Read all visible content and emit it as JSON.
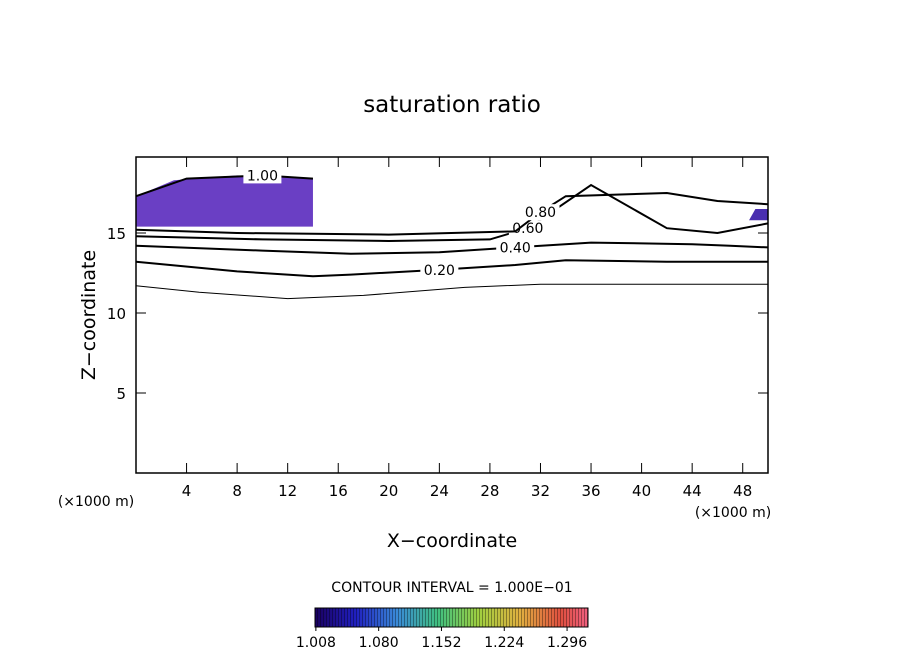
{
  "chart_data": {
    "type": "contour",
    "title": "saturation ratio",
    "xlabel": "X−coordinate",
    "ylabel": "Z−coordinate",
    "x_unit_left": "(×1000 m)",
    "x_unit_right": "(×1000 m)",
    "footer": "CONTOUR INTERVAL = 1.000E−01",
    "xlim": [
      0,
      50
    ],
    "ylim": [
      0,
      19.75
    ],
    "xticks": [
      4,
      8,
      12,
      16,
      20,
      24,
      28,
      32,
      36,
      40,
      44,
      48
    ],
    "yticks": [
      5,
      10,
      15
    ],
    "line_color": "#000000",
    "contours": [
      {
        "level": 0.1,
        "x": [
          0,
          5,
          12,
          18,
          26,
          32,
          50
        ],
        "z": [
          11.7,
          11.3,
          10.9,
          11.1,
          11.6,
          11.8,
          11.8
        ]
      },
      {
        "level": 0.2,
        "label": "0.20",
        "x": [
          0,
          8,
          14,
          17,
          24,
          30,
          34,
          42,
          50
        ],
        "z": [
          13.2,
          12.6,
          12.3,
          12.4,
          12.7,
          13.0,
          13.3,
          13.2,
          13.2
        ]
      },
      {
        "level": 0.4,
        "label": "0.40",
        "x": [
          0,
          10,
          17,
          24,
          30,
          36,
          44,
          47,
          50
        ],
        "z": [
          14.2,
          13.9,
          13.7,
          13.8,
          14.1,
          14.4,
          14.3,
          14.2,
          14.1
        ]
      },
      {
        "level": 0.6,
        "label": "0.60",
        "x": [
          0,
          10,
          20,
          28,
          31,
          36,
          42,
          46,
          50
        ],
        "z": [
          14.8,
          14.6,
          14.5,
          14.6,
          15.3,
          18.0,
          15.3,
          15.0,
          15.6
        ]
      },
      {
        "level": 0.8,
        "label": "0.80",
        "x": [
          0,
          8,
          20,
          30,
          32,
          34,
          42,
          46,
          50
        ],
        "z": [
          15.2,
          15.0,
          14.9,
          15.1,
          16.3,
          17.3,
          17.5,
          17.0,
          16.8
        ]
      },
      {
        "level": 1.0,
        "label": "1.00",
        "x": [
          0,
          4,
          10,
          14
        ],
        "z": [
          17.3,
          18.4,
          18.6,
          18.4
        ]
      }
    ],
    "filled_regions": [
      {
        "color": "#6a3fc4",
        "x": [
          0,
          0,
          3,
          8,
          14,
          14
        ],
        "z": [
          15.4,
          17.3,
          18.3,
          18.6,
          18.4,
          15.4
        ]
      },
      {
        "color": "#4a2fb0",
        "x": [
          49,
          50,
          50,
          48.5
        ],
        "z": [
          16.5,
          16.5,
          15.8,
          15.8
        ]
      }
    ],
    "colorbar": {
      "lim": [
        1.007,
        1.32
      ],
      "ticks": [
        {
          "value": 1.008,
          "label": "1.008"
        },
        {
          "value": 1.08,
          "label": "1.080"
        },
        {
          "value": 1.152,
          "label": "1.152"
        },
        {
          "value": 1.224,
          "label": "1.224"
        },
        {
          "value": 1.296,
          "label": "1.296"
        }
      ]
    }
  }
}
